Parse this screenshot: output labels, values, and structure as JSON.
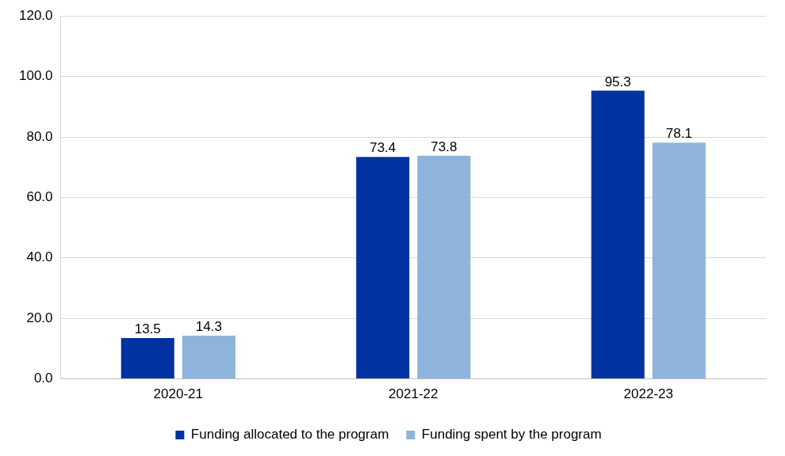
{
  "chart_data": {
    "type": "bar",
    "categories": [
      "2020-21",
      "2021-22",
      "2022-23"
    ],
    "series": [
      {
        "name": "Funding allocated to the program",
        "color": "#0033a0",
        "values": [
          13.5,
          73.4,
          95.3
        ]
      },
      {
        "name": "Funding spent by the program",
        "color": "#8eb4db",
        "values": [
          14.3,
          73.8,
          78.1
        ]
      }
    ],
    "ylim": [
      0,
      120
    ],
    "yticks": [
      {
        "value": 0,
        "label": "0.0"
      },
      {
        "value": 20,
        "label": "20.0"
      },
      {
        "value": 40,
        "label": "40.0"
      },
      {
        "value": 60,
        "label": "60.0"
      },
      {
        "value": 80,
        "label": "80.0"
      },
      {
        "value": 100,
        "label": "100.0"
      },
      {
        "value": 120,
        "label": "120.0"
      }
    ],
    "grid": true,
    "legend": "bottom",
    "data_labels": true
  }
}
